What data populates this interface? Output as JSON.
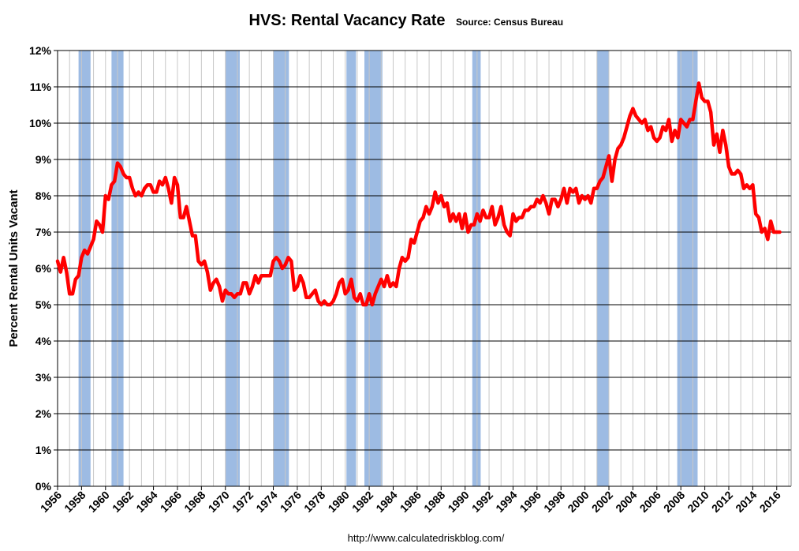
{
  "chart_data": {
    "type": "line",
    "title": "HVS: Rental Vacancy Rate",
    "subtitle": "Source: Census Bureau",
    "y_label": "Percent Rental Units Vacant",
    "footer": "http://www.calculatedriskblog.com/",
    "xlim": [
      1956,
      2017.2
    ],
    "xticks": [
      1956,
      1958,
      1960,
      1962,
      1964,
      1966,
      1968,
      1970,
      1972,
      1974,
      1976,
      1978,
      1980,
      1982,
      1984,
      1986,
      1988,
      1990,
      1992,
      1994,
      1996,
      1998,
      2000,
      2002,
      2004,
      2006,
      2008,
      2010,
      2012,
      2014,
      2016
    ],
    "xminorticks": [
      1957,
      1959,
      1961,
      1963,
      1965,
      1967,
      1969,
      1971,
      1973,
      1975,
      1977,
      1979,
      1981,
      1983,
      1985,
      1987,
      1989,
      1991,
      1993,
      1995,
      1997,
      1999,
      2001,
      2003,
      2005,
      2007,
      2009,
      2011,
      2013,
      2015,
      2017
    ],
    "ylim": [
      0,
      12
    ],
    "yticks": [
      {
        "value": 0,
        "label": "0%"
      },
      {
        "value": 1,
        "label": "1%"
      },
      {
        "value": 2,
        "label": "2%"
      },
      {
        "value": 3,
        "label": "3%"
      },
      {
        "value": 4,
        "label": "4%"
      },
      {
        "value": 5,
        "label": "5%"
      },
      {
        "value": 6,
        "label": "6%"
      },
      {
        "value": 7,
        "label": "7%"
      },
      {
        "value": 8,
        "label": "8%"
      },
      {
        "value": 9,
        "label": "9%"
      },
      {
        "value": 10,
        "label": "10%"
      },
      {
        "value": 11,
        "label": "11%"
      },
      {
        "value": 12,
        "label": "12%"
      }
    ],
    "grid": true,
    "recession_color": "#9dbbe3",
    "recessions": [
      [
        1957.75,
        1958.75
      ],
      [
        1960.5,
        1961.5
      ],
      [
        1970.0,
        1971.2
      ],
      [
        1974.0,
        1975.3
      ],
      [
        1980.1,
        1980.9
      ],
      [
        1981.6,
        1983.1
      ],
      [
        1990.6,
        1991.3
      ],
      [
        2001.0,
        2002.0
      ],
      [
        2007.7,
        2009.4
      ]
    ],
    "x": [
      1956,
      1956.25,
      1956.5,
      1956.75,
      1957,
      1957.25,
      1957.5,
      1957.75,
      1958,
      1958.25,
      1958.5,
      1958.75,
      1959,
      1959.25,
      1959.5,
      1959.75,
      1960,
      1960.25,
      1960.5,
      1960.75,
      1961,
      1961.25,
      1961.5,
      1961.75,
      1962,
      1962.25,
      1962.5,
      1962.75,
      1963,
      1963.25,
      1963.5,
      1963.75,
      1964,
      1964.25,
      1964.5,
      1964.75,
      1965,
      1965.25,
      1965.5,
      1965.75,
      1966,
      1966.25,
      1966.5,
      1966.75,
      1967,
      1967.25,
      1967.5,
      1967.75,
      1968,
      1968.25,
      1968.5,
      1968.75,
      1969,
      1969.25,
      1969.5,
      1969.75,
      1970,
      1970.25,
      1970.5,
      1970.75,
      1971,
      1971.25,
      1971.5,
      1971.75,
      1972,
      1972.25,
      1972.5,
      1972.75,
      1973,
      1973.25,
      1973.5,
      1973.75,
      1974,
      1974.25,
      1974.5,
      1974.75,
      1975,
      1975.25,
      1975.5,
      1975.75,
      1976,
      1976.25,
      1976.5,
      1976.75,
      1977,
      1977.25,
      1977.5,
      1977.75,
      1978,
      1978.25,
      1978.5,
      1978.75,
      1979,
      1979.25,
      1979.5,
      1979.75,
      1980,
      1980.25,
      1980.5,
      1980.75,
      1981,
      1981.25,
      1981.5,
      1981.75,
      1982,
      1982.25,
      1982.5,
      1982.75,
      1983,
      1983.25,
      1983.5,
      1983.75,
      1984,
      1984.25,
      1984.5,
      1984.75,
      1985,
      1985.25,
      1985.5,
      1985.75,
      1986,
      1986.25,
      1986.5,
      1986.75,
      1987,
      1987.25,
      1987.5,
      1987.75,
      1988,
      1988.25,
      1988.5,
      1988.75,
      1989,
      1989.25,
      1989.5,
      1989.75,
      1990,
      1990.25,
      1990.5,
      1990.75,
      1991,
      1991.25,
      1991.5,
      1991.75,
      1992,
      1992.25,
      1992.5,
      1992.75,
      1993,
      1993.25,
      1993.5,
      1993.75,
      1994,
      1994.25,
      1994.5,
      1994.75,
      1995,
      1995.25,
      1995.5,
      1995.75,
      1996,
      1996.25,
      1996.5,
      1996.75,
      1997,
      1997.25,
      1997.5,
      1997.75,
      1998,
      1998.25,
      1998.5,
      1998.75,
      1999,
      1999.25,
      1999.5,
      1999.75,
      2000,
      2000.25,
      2000.5,
      2000.75,
      2001,
      2001.25,
      2001.5,
      2001.75,
      2002,
      2002.25,
      2002.5,
      2002.75,
      2003,
      2003.25,
      2003.5,
      2003.75,
      2004,
      2004.25,
      2004.5,
      2004.75,
      2005,
      2005.25,
      2005.5,
      2005.75,
      2006,
      2006.25,
      2006.5,
      2006.75,
      2007,
      2007.25,
      2007.5,
      2007.75,
      2008,
      2008.25,
      2008.5,
      2008.75,
      2009,
      2009.25,
      2009.5,
      2009.75,
      2010,
      2010.25,
      2010.5,
      2010.75,
      2011,
      2011.25,
      2011.5,
      2011.75,
      2012,
      2012.25,
      2012.5,
      2012.75,
      2013,
      2013.25,
      2013.5,
      2013.75,
      2014,
      2014.25,
      2014.5,
      2014.75,
      2015,
      2015.25,
      2015.5,
      2015.75,
      2016,
      2016.25
    ],
    "series": [
      {
        "color": "#ff0000",
        "values": [
          6.2,
          5.9,
          6.3,
          5.9,
          5.3,
          5.3,
          5.7,
          5.8,
          6.3,
          6.5,
          6.4,
          6.6,
          6.8,
          7.3,
          7.2,
          7.0,
          8.0,
          7.9,
          8.3,
          8.4,
          8.9,
          8.8,
          8.6,
          8.5,
          8.5,
          8.2,
          8.0,
          8.1,
          8.0,
          8.2,
          8.3,
          8.3,
          8.1,
          8.1,
          8.4,
          8.3,
          8.5,
          8.2,
          7.8,
          8.5,
          8.3,
          7.4,
          7.4,
          7.7,
          7.3,
          6.9,
          6.9,
          6.2,
          6.1,
          6.2,
          5.9,
          5.4,
          5.6,
          5.7,
          5.5,
          5.1,
          5.4,
          5.3,
          5.3,
          5.2,
          5.3,
          5.3,
          5.6,
          5.6,
          5.3,
          5.5,
          5.8,
          5.6,
          5.8,
          5.8,
          5.8,
          5.8,
          6.2,
          6.3,
          6.2,
          6.0,
          6.1,
          6.3,
          6.2,
          5.4,
          5.5,
          5.8,
          5.6,
          5.2,
          5.2,
          5.3,
          5.4,
          5.1,
          5.0,
          5.1,
          5.0,
          5.0,
          5.1,
          5.3,
          5.6,
          5.7,
          5.3,
          5.4,
          5.7,
          5.2,
          5.1,
          5.3,
          5.0,
          5.0,
          5.3,
          5.0,
          5.3,
          5.5,
          5.7,
          5.5,
          5.8,
          5.5,
          5.6,
          5.5,
          6.0,
          6.3,
          6.2,
          6.3,
          6.8,
          6.7,
          7.0,
          7.3,
          7.4,
          7.7,
          7.5,
          7.7,
          8.1,
          7.8,
          8.0,
          7.7,
          7.8,
          7.3,
          7.5,
          7.3,
          7.5,
          7.1,
          7.5,
          7.0,
          7.2,
          7.2,
          7.5,
          7.3,
          7.6,
          7.4,
          7.4,
          7.7,
          7.2,
          7.4,
          7.7,
          7.2,
          7.0,
          6.9,
          7.5,
          7.3,
          7.4,
          7.4,
          7.6,
          7.6,
          7.7,
          7.7,
          7.9,
          7.8,
          8.0,
          7.8,
          7.5,
          7.9,
          7.9,
          7.7,
          7.9,
          8.2,
          7.8,
          8.2,
          8.1,
          8.2,
          7.8,
          8.0,
          7.9,
          8.0,
          7.8,
          8.2,
          8.2,
          8.4,
          8.5,
          8.8,
          9.1,
          8.4,
          9.0,
          9.3,
          9.4,
          9.6,
          9.9,
          10.2,
          10.4,
          10.2,
          10.1,
          10.0,
          10.1,
          9.8,
          9.9,
          9.6,
          9.5,
          9.6,
          9.9,
          9.8,
          10.1,
          9.5,
          9.8,
          9.6,
          10.1,
          10.0,
          9.9,
          10.1,
          10.1,
          10.6,
          11.1,
          10.7,
          10.6,
          10.6,
          10.3,
          9.4,
          9.7,
          9.2,
          9.8,
          9.4,
          8.8,
          8.6,
          8.6,
          8.7,
          8.6,
          8.2,
          8.3,
          8.2,
          8.3,
          7.5,
          7.4,
          7.0,
          7.1,
          6.8,
          7.3,
          7.0,
          7.0,
          7.0
        ]
      }
    ]
  }
}
